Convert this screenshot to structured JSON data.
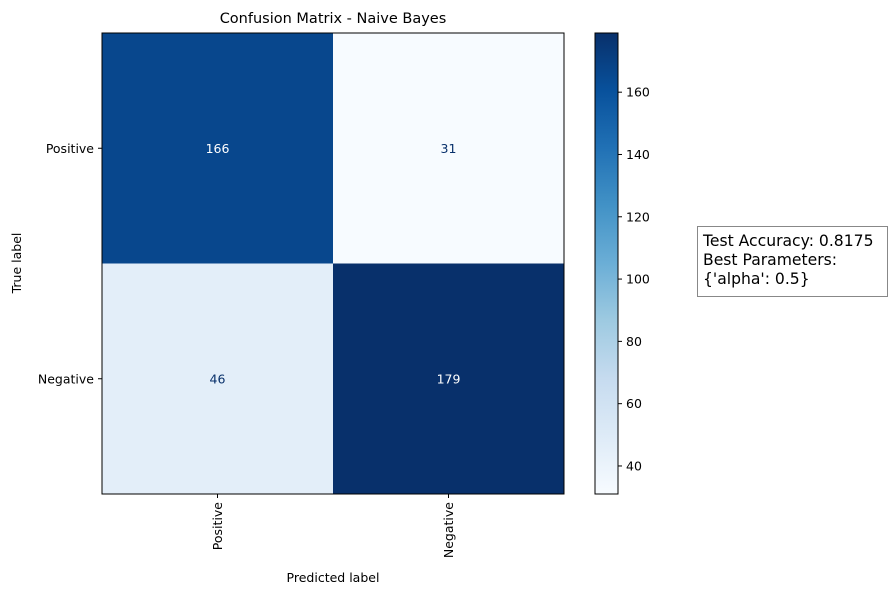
{
  "chart_data": {
    "type": "heatmap",
    "title": "Confusion Matrix - Naive Bayes",
    "xlabel": "Predicted label",
    "ylabel": "True label",
    "x_categories": [
      "Positive",
      "Negative"
    ],
    "y_categories": [
      "Positive",
      "Negative"
    ],
    "values": [
      [
        166,
        31
      ],
      [
        46,
        179
      ]
    ],
    "colormap": "Blues",
    "color_range": [
      31,
      179
    ],
    "colorbar_ticks": [
      40,
      60,
      80,
      100,
      120,
      140,
      160
    ],
    "x_tick_rotation": "vertical"
  },
  "annotation": {
    "lines": [
      "Test Accuracy: 0.8175",
      "Best Parameters:",
      "{'alpha': 0.5}"
    ]
  },
  "colors": {
    "cmap_low": "#f7fbff",
    "cmap_high": "#08306b",
    "text_light": "#ffffff",
    "text_dark": "#08306b",
    "box_border": "#888888"
  }
}
